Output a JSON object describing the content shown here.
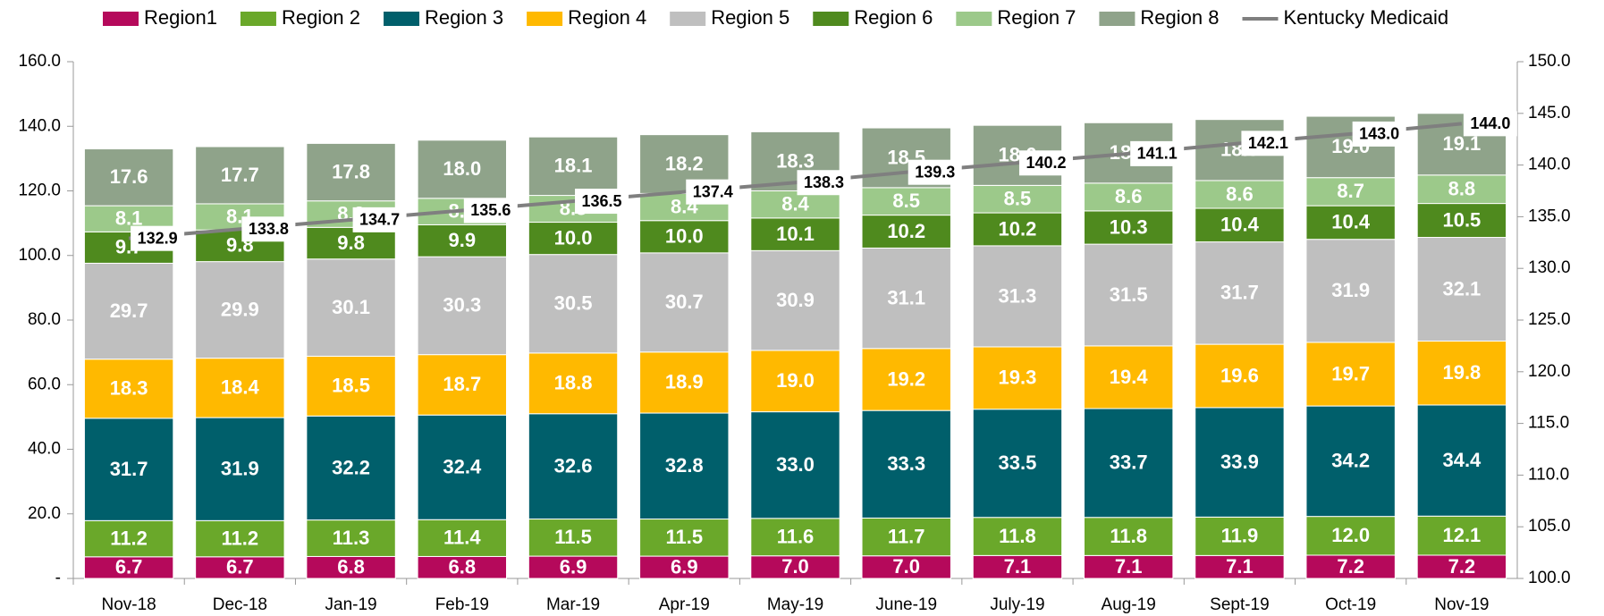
{
  "chart_data": {
    "type": "stacked_bar_line",
    "categories": [
      "Nov-18",
      "Dec-18",
      "Jan-19",
      "Feb-19",
      "Mar-19",
      "Apr-19",
      "May-19",
      "June-19",
      "July-19",
      "Aug-19",
      "Sept-19",
      "Oct-19",
      "Nov-19"
    ],
    "series": [
      {
        "name": "Region1",
        "color": "#b5095b",
        "values": [
          6.7,
          6.7,
          6.8,
          6.8,
          6.9,
          6.9,
          7.0,
          7.0,
          7.1,
          7.1,
          7.1,
          7.2,
          7.2
        ],
        "value_labels": [
          "6.7",
          "6.7",
          "6.8",
          "6.8",
          "6.9",
          "6.9",
          "7.0",
          "7.0",
          "7.1",
          "7.1",
          "7.1",
          "7.2",
          "7.2"
        ]
      },
      {
        "name": "Region 2",
        "color": "#6aa82a",
        "values": [
          11.2,
          11.2,
          11.3,
          11.4,
          11.5,
          11.5,
          11.6,
          11.7,
          11.8,
          11.8,
          11.9,
          12.0,
          12.1
        ],
        "value_labels": [
          "11.2",
          "11.2",
          "11.3",
          "11.4",
          "11.5",
          "11.5",
          "11.6",
          "11.7",
          "11.8",
          "11.8",
          "11.9",
          "12.0",
          "12.1"
        ]
      },
      {
        "name": "Region 3",
        "color": "#005f6b",
        "values": [
          31.7,
          31.9,
          32.2,
          32.4,
          32.6,
          32.8,
          33.0,
          33.3,
          33.5,
          33.7,
          33.9,
          34.2,
          34.4
        ],
        "value_labels": [
          "31.7",
          "31.9",
          "32.2",
          "32.4",
          "32.6",
          "32.8",
          "33.0",
          "33.3",
          "33.5",
          "33.7",
          "33.9",
          "34.2",
          "34.4"
        ]
      },
      {
        "name": "Region 4",
        "color": "#ffb900",
        "values": [
          18.3,
          18.4,
          18.5,
          18.7,
          18.8,
          18.9,
          19.0,
          19.2,
          19.3,
          19.4,
          19.6,
          19.7,
          19.8
        ],
        "value_labels": [
          "18.3",
          "18.4",
          "18.5",
          "18.7",
          "18.8",
          "18.9",
          "19.0",
          "19.2",
          "19.3",
          "19.4",
          "19.6",
          "19.7",
          "19.8"
        ]
      },
      {
        "name": "Region 5",
        "color": "#bfbfbf",
        "values": [
          29.7,
          29.9,
          30.1,
          30.3,
          30.5,
          30.7,
          30.9,
          31.1,
          31.3,
          31.5,
          31.7,
          31.9,
          32.1
        ],
        "value_labels": [
          "29.7",
          "29.9",
          "30.1",
          "30.3",
          "30.5",
          "30.7",
          "30.9",
          "31.1",
          "31.3",
          "31.5",
          "31.7",
          "31.9",
          "32.1"
        ]
      },
      {
        "name": "Region 6",
        "color": "#4f8a1e",
        "values": [
          9.7,
          9.8,
          9.8,
          9.9,
          10.0,
          10.0,
          10.1,
          10.2,
          10.2,
          10.3,
          10.4,
          10.4,
          10.5
        ],
        "value_labels": [
          "9.7",
          "9.8",
          "9.8",
          "9.9",
          "10.0",
          "10.0",
          "10.1",
          "10.2",
          "10.2",
          "10.3",
          "10.4",
          "10.4",
          "10.5"
        ]
      },
      {
        "name": "Region 7",
        "color": "#9cc98a",
        "values": [
          8.1,
          8.1,
          8.2,
          8.2,
          8.3,
          8.4,
          8.4,
          8.5,
          8.5,
          8.6,
          8.6,
          8.7,
          8.8
        ],
        "value_labels": [
          "8.1",
          "8.1",
          "8.2",
          "8.2",
          "8.3",
          "8.4",
          "8.4",
          "8.5",
          "8.5",
          "8.6",
          "8.6",
          "8.7",
          "8.8"
        ]
      },
      {
        "name": "Region 8",
        "color": "#8fa38a",
        "values": [
          17.6,
          17.7,
          17.8,
          18.0,
          18.1,
          18.2,
          18.3,
          18.5,
          18.6,
          18.7,
          18.9,
          19.0,
          19.1
        ],
        "value_labels": [
          "17.6",
          "17.7",
          "17.8",
          "18.0",
          "18.1",
          "18.2",
          "18.3",
          "18.5",
          "18.6",
          "18.7",
          "18.9",
          "19.0",
          "19.1"
        ]
      },
      {
        "name": "Kentucky Medicaid",
        "color": "#7f7f7f",
        "type": "line",
        "axis": "y2",
        "values": [
          132.9,
          133.8,
          134.7,
          135.6,
          136.5,
          137.4,
          138.3,
          139.3,
          140.2,
          141.1,
          142.1,
          143.0,
          144.0
        ],
        "value_labels": [
          "132.9",
          "133.8",
          "134.7",
          "135.6",
          "136.5",
          "137.4",
          "138.3",
          "139.3",
          "140.2",
          "141.1",
          "142.1",
          "143.0",
          "144.0"
        ]
      }
    ],
    "ylim": [
      0,
      160
    ],
    "yticks": [
      {
        "value": 0,
        "label": "-"
      },
      {
        "value": 20,
        "label": "20.0"
      },
      {
        "value": 40,
        "label": "40.0"
      },
      {
        "value": 60,
        "label": "60.0"
      },
      {
        "value": 80,
        "label": "80.0"
      },
      {
        "value": 100,
        "label": "100.0"
      },
      {
        "value": 120,
        "label": "120.0"
      },
      {
        "value": 140,
        "label": "140.0"
      },
      {
        "value": 160,
        "label": "160.0"
      }
    ],
    "y2lim": [
      100,
      150
    ],
    "y2ticks": [
      {
        "value": 100,
        "label": "100.0"
      },
      {
        "value": 105,
        "label": "105.0"
      },
      {
        "value": 110,
        "label": "110.0"
      },
      {
        "value": 115,
        "label": "115.0"
      },
      {
        "value": 120,
        "label": "120.0"
      },
      {
        "value": 125,
        "label": "125.0"
      },
      {
        "value": 130,
        "label": "130.0"
      },
      {
        "value": 135,
        "label": "135.0"
      },
      {
        "value": 140,
        "label": "140.0"
      },
      {
        "value": 145,
        "label": "145.0"
      },
      {
        "value": 150,
        "label": "150.0"
      }
    ],
    "legend": "top"
  }
}
